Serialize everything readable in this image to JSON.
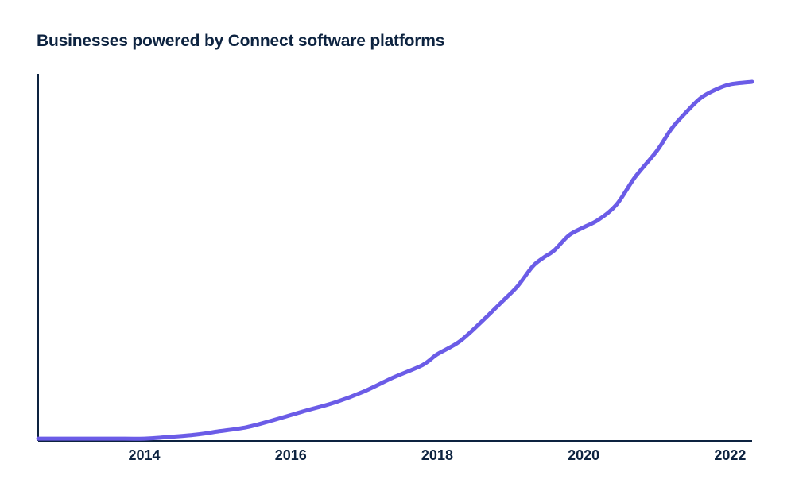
{
  "chart_data": {
    "type": "line",
    "title": "Businesses powered by Connect software platforms",
    "xlabel": "",
    "ylabel": "",
    "grid": false,
    "legend": "none",
    "line_color": "#6b5ce7",
    "axis_color": "#0d2340",
    "xlim": [
      2012.55,
      2022.3
    ],
    "ylim": [
      0,
      100
    ],
    "x_ticks": [
      2014,
      2016,
      2018,
      2020,
      2022
    ],
    "x_tick_labels": [
      "2014",
      "2016",
      "2018",
      "2020",
      "2022"
    ],
    "series": [
      {
        "name": "Businesses powered by Connect software platforms",
        "x": [
          2012.55,
          2013.5,
          2014.0,
          2014.3,
          2014.7,
          2015.0,
          2015.4,
          2015.8,
          2016.2,
          2016.6,
          2017.0,
          2017.4,
          2017.8,
          2018.0,
          2018.3,
          2018.6,
          2018.9,
          2019.1,
          2019.3,
          2019.45,
          2019.6,
          2019.8,
          2020.0,
          2020.2,
          2020.45,
          2020.7,
          2021.0,
          2021.2,
          2021.4,
          2021.6,
          2021.8,
          2022.0,
          2022.3
        ],
        "values": [
          0.2,
          0.2,
          0.2,
          0.6,
          1.3,
          2.2,
          3.4,
          5.6,
          8.0,
          10.3,
          13.4,
          17.3,
          20.8,
          23.8,
          27.3,
          32.8,
          38.8,
          42.9,
          48.3,
          50.8,
          52.9,
          57.1,
          59.3,
          61.4,
          65.7,
          73.3,
          80.7,
          86.9,
          91.5,
          95.5,
          97.8,
          99.3,
          100.0
        ]
      }
    ]
  }
}
